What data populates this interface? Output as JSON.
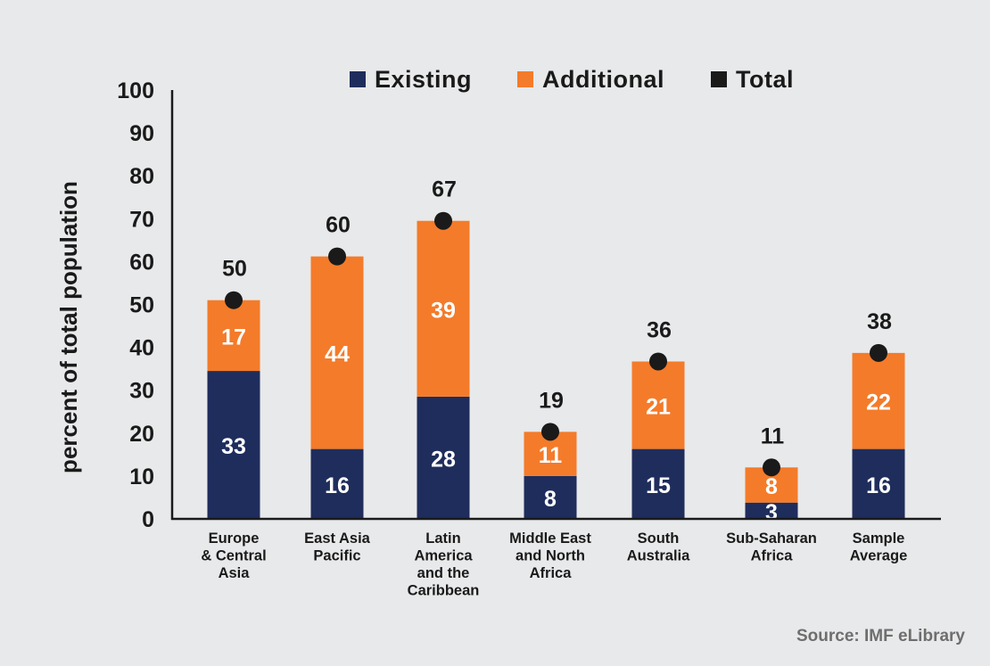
{
  "chart_data": {
    "type": "bar",
    "stacked": true,
    "ylabel": "percent of total population",
    "ylim": [
      0,
      100
    ],
    "yticks": [
      0,
      10,
      20,
      30,
      40,
      50,
      60,
      70,
      80,
      90,
      100
    ],
    "grid": false,
    "legend_position": "top-center",
    "categories": [
      [
        "Europe",
        "& Central",
        "Asia"
      ],
      [
        "East Asia",
        "Pacific"
      ],
      [
        "Latin",
        "America",
        "and the",
        "Caribbean"
      ],
      [
        "Middle East",
        "and North",
        "Africa"
      ],
      [
        "South",
        "Australia"
      ],
      [
        "Sub-Saharan",
        "Africa"
      ],
      [
        "Sample",
        "Average"
      ]
    ],
    "series": [
      {
        "name": "Existing",
        "color": "#1f2d5c",
        "values": [
          33,
          16,
          28,
          8,
          15,
          3,
          16
        ],
        "bar_tops": [
          34.5,
          16.3,
          28.5,
          10,
          16.3,
          3.8,
          16.3
        ]
      },
      {
        "name": "Additional",
        "color": "#f47b2a",
        "values": [
          17,
          44,
          39,
          11,
          21,
          8,
          22
        ],
        "bar_tops": [
          51,
          61.2,
          69.5,
          20.3,
          36.7,
          12,
          38.7
        ]
      },
      {
        "name": "Total",
        "color": "#1a1a1a",
        "values": [
          50,
          60,
          67,
          19,
          36,
          11,
          38
        ],
        "marker_values": [
          51,
          61.2,
          69.5,
          20.3,
          36.7,
          12,
          38.7
        ]
      }
    ]
  },
  "source": "Source: IMF eLibrary"
}
